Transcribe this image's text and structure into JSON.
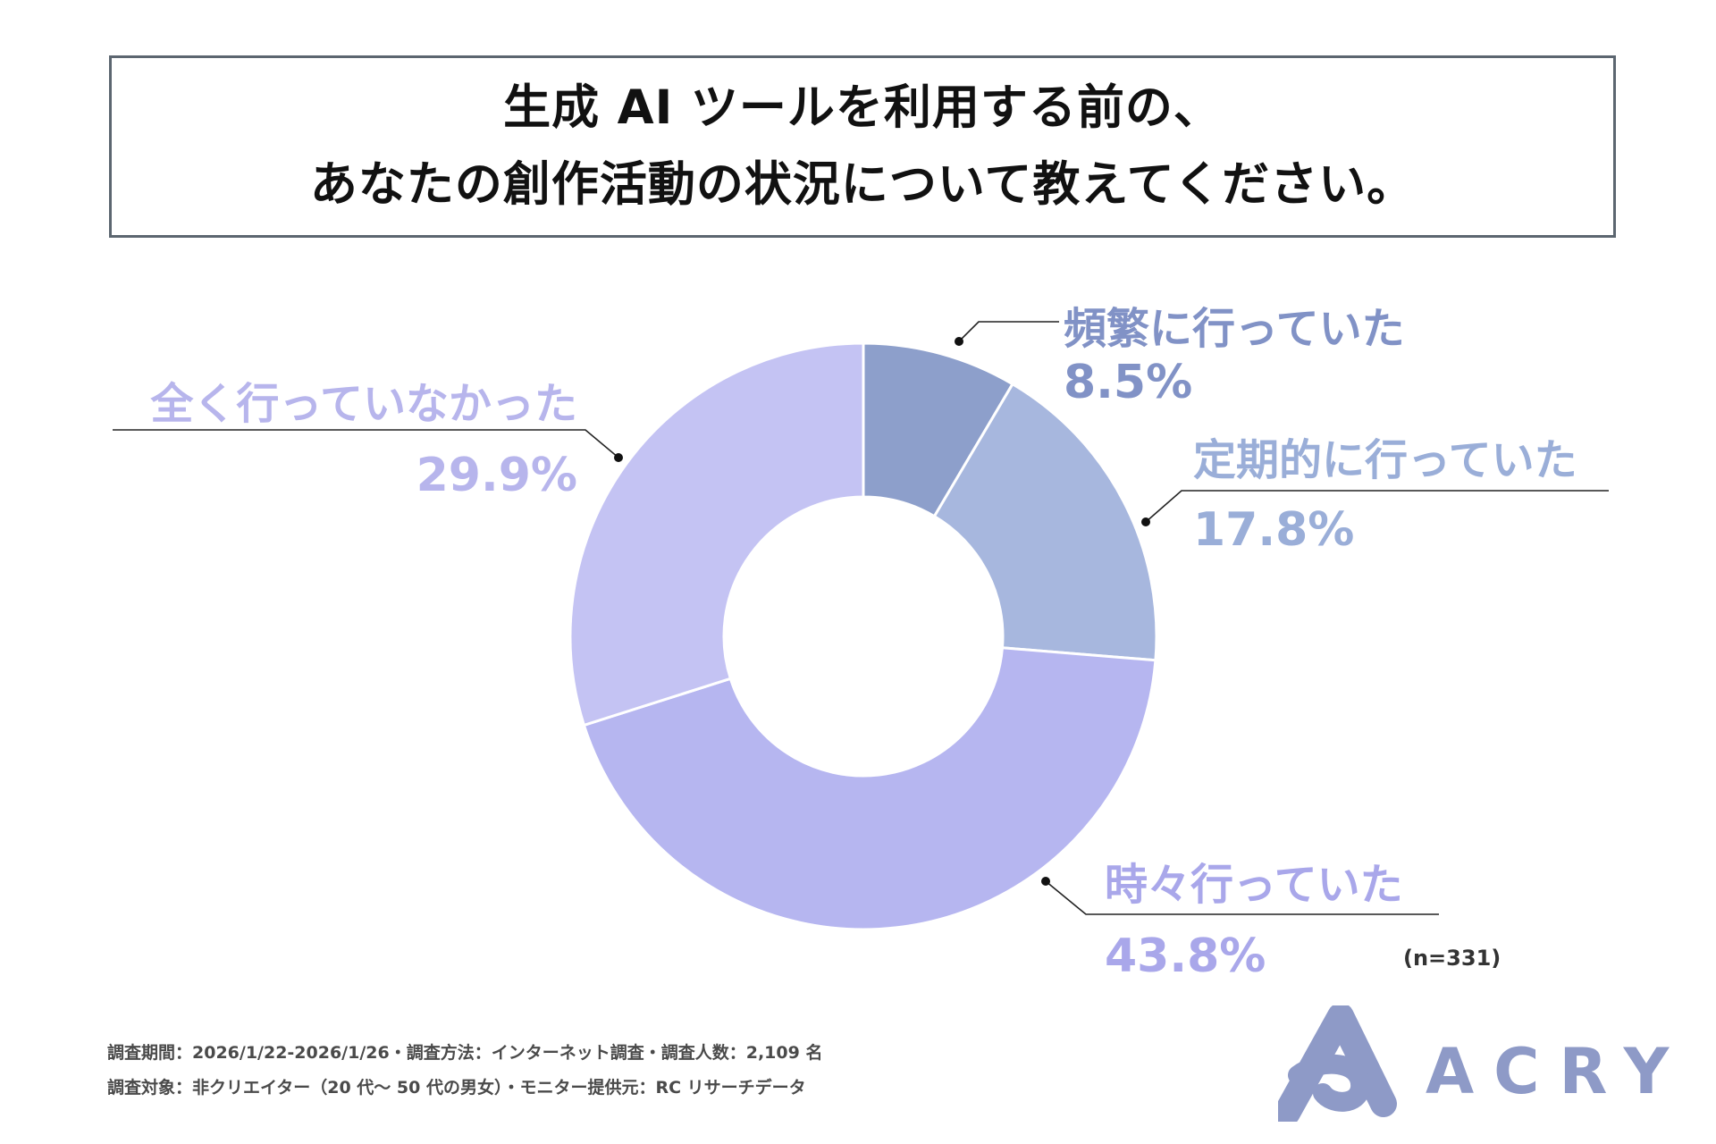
{
  "title": {
    "line1": "生成 AI ツールを利用する前の、",
    "line2": "あなたの創作活動の状況について教えてください。"
  },
  "chart_data": {
    "type": "pie",
    "donut": true,
    "title": "生成 AI ツールを利用する前の、あなたの創作活動の状況について教えてください。",
    "categories": [
      "頻繁に行っていた",
      "定期的に行っていた",
      "時々行っていた",
      "全く行っていなかった"
    ],
    "values": [
      8.5,
      17.8,
      43.8,
      29.9
    ],
    "value_labels": [
      "8.5%",
      "17.8%",
      "43.8%",
      "29.9%"
    ],
    "colors": [
      "#8d9fcb",
      "#a7b7de",
      "#b6b6f0",
      "#c4c3f3"
    ],
    "label_colors": [
      "#8192c6",
      "#9aaed8",
      "#a9a7ea",
      "#b7b5ec"
    ],
    "n_note": "(n=331)"
  },
  "footer": {
    "line1": "調査期間：2026/1/22-2026/1/26・調査方法：インターネット調査・調査人数：2,109 名",
    "line2": "調査対象：非クリエイター（20 代～ 50 代の男女）・モニター提供元：RC リサーチデータ"
  },
  "brand": {
    "name": "ACRY",
    "color": "#8e9ac7"
  }
}
